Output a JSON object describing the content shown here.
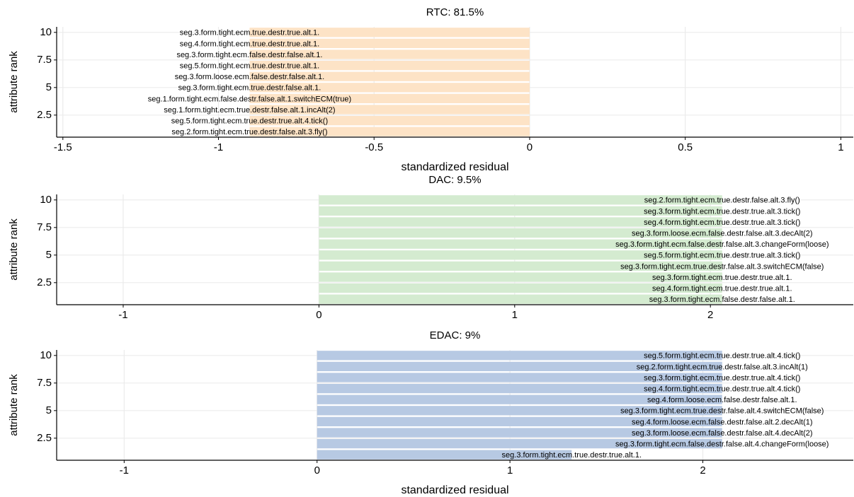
{
  "chart_data": [
    {
      "type": "bar",
      "orientation": "horizontal",
      "title": "RTC: 81.5%",
      "xlabel": "standardized residual",
      "ylabel": "attribute rank",
      "color": "#fde3c6",
      "y": [
        10,
        9,
        8,
        7,
        6,
        5,
        4,
        3,
        2,
        1
      ],
      "labels": [
        "seg.3.form.tight.ecm.true.destr.true.alt.1.",
        "seg.4.form.tight.ecm.true.destr.true.alt.1.",
        "seg.3.form.tight.ecm.false.destr.false.alt.1.",
        "seg.5.form.tight.ecm.true.destr.true.alt.1.",
        "seg.3.form.loose.ecm.false.destr.false.alt.1.",
        "seg.3.form.tight.ecm.true.destr.false.alt.1.",
        "seg.1.form.tight.ecm.false.destr.false.alt.1.switchECM(true)",
        "seg.1.form.tight.ecm.true.destr.false.alt.1.incAlt(2)",
        "seg.5.form.tight.ecm.true.destr.true.alt.4.tick()",
        "seg.2.form.tight.ecm.true.destr.false.alt.3.fly()"
      ],
      "values": [
        -0.9,
        -0.9,
        -0.9,
        -0.9,
        -0.9,
        -0.9,
        -0.9,
        -0.9,
        -0.9,
        -0.9
      ],
      "xlim": [
        -1.52,
        1.04
      ],
      "xticks": [
        -1.5,
        -1.0,
        -0.5,
        0.0,
        0.5,
        1.0
      ],
      "ylim": [
        0.5,
        10.5
      ],
      "yticks": [
        2.5,
        5.0,
        7.5,
        10.0
      ],
      "grid": true
    },
    {
      "type": "bar",
      "orientation": "horizontal",
      "title": "DAC: 9.5%",
      "ylabel": "attribute rank",
      "color": "#d4ebd0",
      "y": [
        10,
        9,
        8,
        7,
        6,
        5,
        4,
        3,
        2,
        1
      ],
      "labels": [
        "seg.2.form.tight.ecm.true.destr.false.alt.3.fly()",
        "seg.3.form.tight.ecm.true.destr.true.alt.3.tick()",
        "seg.4.form.tight.ecm.true.destr.true.alt.3.tick()",
        "seg.3.form.loose.ecm.false.destr.false.alt.3.decAlt(2)",
        "seg.3.form.tight.ecm.false.destr.false.alt.3.changeForm(loose)",
        "seg.5.form.tight.ecm.true.destr.true.alt.3.tick()",
        "seg.3.form.tight.ecm.true.destr.false.alt.3.switchECM(false)",
        "seg.3.form.tight.ecm.true.destr.true.alt.1.",
        "seg.4.form.tight.ecm.true.destr.true.alt.1.",
        "seg.3.form.tight.ecm.false.destr.false.alt.1."
      ],
      "values": [
        2.06,
        2.06,
        2.06,
        2.06,
        2.06,
        2.06,
        2.06,
        2.06,
        2.06,
        2.06
      ],
      "xlim": [
        -1.34,
        2.73
      ],
      "xticks": [
        -1,
        0,
        1,
        2
      ],
      "ylim": [
        0.5,
        10.5
      ],
      "yticks": [
        2.5,
        5.0,
        7.5,
        10.0
      ],
      "grid": true
    },
    {
      "type": "bar",
      "orientation": "horizontal",
      "title": "EDAC: 9%",
      "xlabel": "standardized residual",
      "ylabel": "attribute rank",
      "color": "#b7c9e3",
      "y": [
        10,
        9,
        8,
        7,
        6,
        5,
        4,
        3,
        2,
        1
      ],
      "labels": [
        "seg.5.form.tight.ecm.true.destr.true.alt.4.tick()",
        "seg.2.form.tight.ecm.true.destr.false.alt.3.incAlt(1)",
        "seg.3.form.tight.ecm.true.destr.true.alt.4.tick()",
        "seg.4.form.tight.ecm.true.destr.true.alt.4.tick()",
        "seg.4.form.loose.ecm.false.destr.false.alt.1.",
        "seg.3.form.tight.ecm.true.destr.false.alt.4.switchECM(false)",
        "seg.4.form.loose.ecm.false.destr.false.alt.2.decAlt(1)",
        "seg.3.form.loose.ecm.false.destr.false.alt.4.decAlt(2)",
        "seg.3.form.tight.ecm.false.destr.false.alt.4.changeForm(loose)",
        "seg.3.form.tight.ecm.true.destr.true.alt.1."
      ],
      "values": [
        2.1,
        2.1,
        2.1,
        2.1,
        2.1,
        2.1,
        2.1,
        2.1,
        2.1,
        1.32
      ],
      "xlim": [
        -1.35,
        2.78
      ],
      "xticks": [
        -1,
        0,
        1,
        2
      ],
      "ylim": [
        0.5,
        10.5
      ],
      "yticks": [
        2.5,
        5.0,
        7.5,
        10.0
      ],
      "grid": true
    }
  ]
}
